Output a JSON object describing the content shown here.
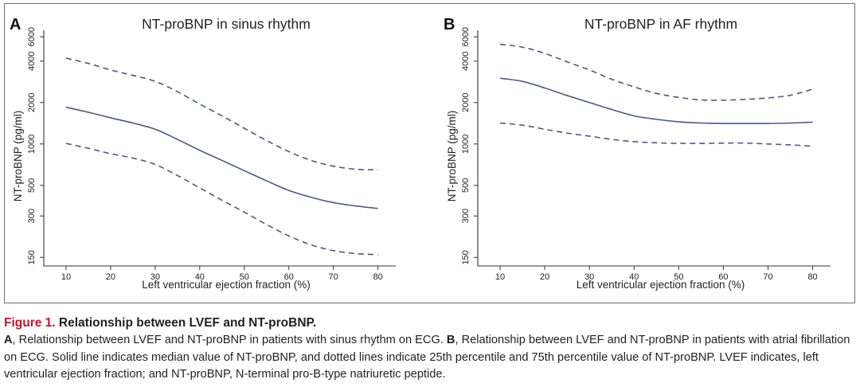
{
  "chart_data": [
    {
      "type": "line",
      "panel_label": "A",
      "title": "NT-proBNP in sinus rhythm",
      "xlabel": "Left ventricular ejection fraction (%)",
      "ylabel": "NT-proBNP (pg/ml)",
      "xlim": [
        5,
        84
      ],
      "ylim": [
        130,
        6700
      ],
      "yscale": "log",
      "xticks": [
        10,
        20,
        30,
        40,
        50,
        60,
        70,
        80
      ],
      "yticks": [
        150,
        300,
        500,
        1000,
        2000,
        4000,
        6000
      ],
      "x": [
        10,
        15,
        20,
        25,
        30,
        35,
        40,
        45,
        50,
        55,
        60,
        65,
        70,
        75,
        80
      ],
      "series": [
        {
          "values": [
            1850,
            1700,
            1550,
            1420,
            1280,
            1080,
            900,
            760,
            640,
            540,
            460,
            410,
            375,
            355,
            340
          ],
          "style": "solid",
          "color": "#4a5a80"
        },
        {
          "values": [
            4200,
            3850,
            3450,
            3150,
            2850,
            2400,
            1950,
            1600,
            1300,
            1060,
            880,
            760,
            690,
            655,
            650
          ],
          "style": "dashed",
          "color": "#4a5a80"
        },
        {
          "values": [
            1010,
            930,
            850,
            790,
            710,
            590,
            480,
            390,
            320,
            260,
            215,
            185,
            168,
            160,
            157
          ],
          "style": "dashed",
          "color": "#4a5a80"
        }
      ]
    },
    {
      "type": "line",
      "panel_label": "B",
      "title": "NT-proBNP in AF rhythm",
      "xlabel": "Left ventricular ejection fraction (%)",
      "ylabel": "NT-proBNP (pg/ml)",
      "xlim": [
        5,
        84
      ],
      "ylim": [
        130,
        6700
      ],
      "yscale": "log",
      "xticks": [
        10,
        20,
        30,
        40,
        50,
        60,
        70,
        80
      ],
      "yticks": [
        150,
        300,
        500,
        1000,
        2000,
        4000,
        6000
      ],
      "x": [
        10,
        15,
        20,
        25,
        30,
        35,
        40,
        45,
        50,
        55,
        60,
        65,
        70,
        75,
        80
      ],
      "series": [
        {
          "values": [
            3000,
            2850,
            2550,
            2250,
            2000,
            1780,
            1600,
            1510,
            1450,
            1420,
            1410,
            1410,
            1410,
            1420,
            1440
          ],
          "style": "solid",
          "color": "#4a5a80"
        },
        {
          "values": [
            5300,
            5050,
            4550,
            3950,
            3450,
            2950,
            2600,
            2330,
            2180,
            2090,
            2080,
            2110,
            2160,
            2260,
            2500
          ],
          "style": "dashed",
          "color": "#4a5a80"
        },
        {
          "values": [
            1420,
            1370,
            1280,
            1200,
            1140,
            1080,
            1040,
            1020,
            1010,
            1010,
            1015,
            1015,
            1000,
            985,
            965
          ],
          "style": "dashed",
          "color": "#4a5a80"
        }
      ]
    }
  ],
  "caption": {
    "figure_number": "Figure 1.",
    "title": " Relationship between LVEF and NT-proBNP.",
    "part_a_label": "A",
    "part_a_text": ", Relationship between LVEF and NT-proBNP in patients with sinus rhythm on ECG. ",
    "part_b_label": "B",
    "part_b_text": ", Relationship between LVEF and NT-proBNP in patients with atrial fibrillation on ECG. Solid line indicates median value of NT-proBNP, and dotted lines indicate 25th percentile and 75th percentile value of NT-proBNP. LVEF indicates, left ventricular ejection fraction; and NT-proBNP, N-terminal pro-B-type natriuretic peptide."
  },
  "colors": {
    "line": "#4a5a80",
    "axis": "#333333",
    "figure_number": "#c8102e"
  }
}
